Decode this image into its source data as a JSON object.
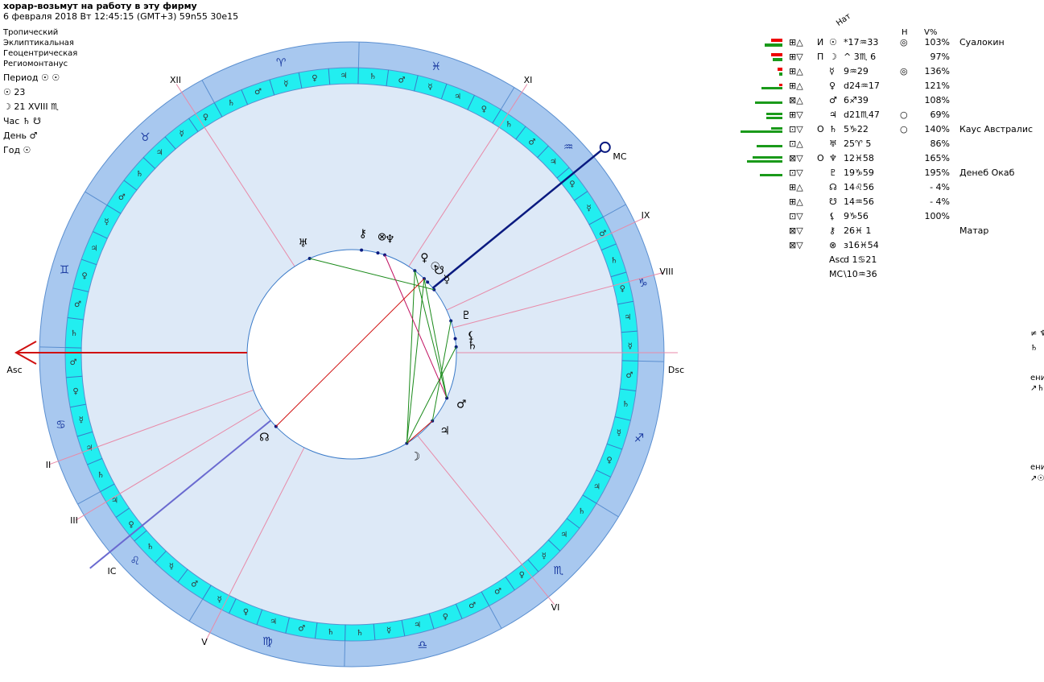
{
  "header": {
    "title": "хорар-возьмут на работу в эту фирму",
    "datetime": "6 февраля 2018  Вт  12:45:15 (GMT+3) 59n55  30e15"
  },
  "settings": [
    "Тропический",
    "Эклиптикальная",
    "Геоцентрическая",
    "Региомонтанус"
  ],
  "rulers": [
    "Период ☉ ☉",
    "☉  23",
    "☽  21 XVIII ♏",
    "Час ♄ ☋",
    "День ♂",
    "Год ☉"
  ],
  "houses": [
    "XII",
    "XI",
    "MC",
    "IX",
    "VIII",
    "Dsc",
    "VI",
    "V",
    "IC",
    "III",
    "II",
    "Asc"
  ],
  "signs": [
    "♈",
    "♉",
    "♊",
    "♋",
    "♌",
    "♍",
    "♎",
    "♏",
    "♐",
    "♑",
    "♒",
    "♓"
  ],
  "terms": [
    "♃",
    "♀",
    "☿",
    "♂",
    "♄",
    "♀",
    "☿",
    "♃",
    "♄",
    "♂",
    "☿",
    "♃",
    "♀",
    "♂",
    "♄",
    "♂",
    "♀",
    "☿",
    "♃",
    "♄",
    "♃",
    "♀",
    "♄",
    "☿",
    "♂",
    "☿",
    "♀",
    "♃",
    "♂",
    "♄",
    "♄",
    "☿",
    "♃",
    "♀",
    "♂",
    "♂",
    "♀",
    "☿",
    "♃",
    "♄",
    "♃",
    "♀",
    "☿",
    "♄",
    "♂",
    "☿",
    "♃",
    "♀",
    "♄",
    "♂",
    "☿",
    "♀",
    "♃",
    "♂",
    "♄",
    "♀",
    "♃",
    "☿",
    "♂",
    "♄"
  ],
  "table": {
    "headers": [
      "Нат",
      "H",
      "V%"
    ],
    "rows": [
      {
        "dignity": "⊞△",
        "mark": "И",
        "planet": "☉",
        "pos": "*17♒33",
        "h": "◎",
        "v": "103%",
        "star": "Суалокин"
      },
      {
        "dignity": "⊞▽",
        "mark": "П",
        "planet": "☽",
        "pos": "^ 3♏ 6",
        "v": "97%"
      },
      {
        "dignity": "⊞△",
        "planet": "☿",
        "pos": "9♒29",
        "h": "◎",
        "v": "136%"
      },
      {
        "dignity": "⊞△",
        "planet": "♀",
        "pos": "d24♒17",
        "v": "121%"
      },
      {
        "dignity": "⊠△",
        "planet": "♂",
        "pos": "6♐39",
        "v": "108%"
      },
      {
        "dignity": "⊞▽",
        "planet": "♃",
        "pos": "d21♏47",
        "h": "○",
        "v": "69%"
      },
      {
        "dignity": "⊡▽",
        "mark": "O",
        "planet": "♄",
        "pos": "5♑22",
        "h": "○",
        "v": "140%",
        "star": "Каус Австралис"
      },
      {
        "dignity": "⊡△",
        "planet": "♅",
        "pos": "25♈ 5",
        "v": "86%"
      },
      {
        "dignity": "⊠▽",
        "mark": "O",
        "planet": "♆",
        "pos": "12♓58",
        "v": "165%"
      },
      {
        "dignity": "⊡▽",
        "planet": "♇",
        "pos": "19♑59",
        "v": "195%",
        "star": "Денеб Окаб"
      },
      {
        "dignity": "⊞△",
        "planet": "☊",
        "pos": "14♌56",
        "v": "- 4%"
      },
      {
        "dignity": "⊞△",
        "planet": "☋",
        "pos": "14♒56",
        "v": "- 4%"
      },
      {
        "dignity": "⊡▽",
        "planet": "⚸",
        "pos": "9♑56",
        "v": "100%"
      },
      {
        "dignity": "⊠▽",
        "planet": "⚷",
        "pos": "26♓ 1",
        "star": "Матар"
      },
      {
        "dignity": "⊠▽",
        "planet": "⊗",
        "pos": "з16♓54"
      },
      {
        "planet": "Asc",
        "pos": "d 1♋21"
      },
      {
        "planet": "MC",
        "pos": "\\10♒36"
      }
    ]
  },
  "side": [
    "≠ ♆",
    "♄",
    "ени",
    "↗♄",
    "ени",
    "↗☉"
  ]
}
